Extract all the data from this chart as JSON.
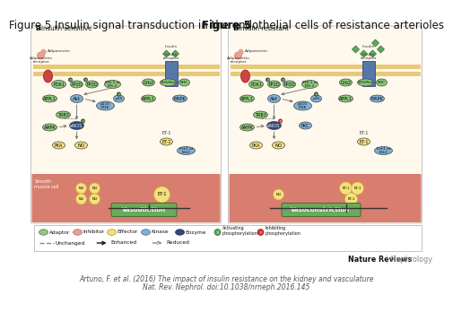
{
  "title_bold": "Figure 5",
  "title_regular": " Insulin signal transduction in the endothelial cells of resistance arterioles",
  "title_fontsize": 8.5,
  "bg_color": "#ffffff",
  "citation_line1": "Artuno, F. et al. (2016) The impact of insulin resistance on the kidney and vasculature",
  "citation_line2": "Nat. Rev. Nephrol. doi:10.1038/nrneph.2016.145",
  "citation_fontsize": 5.5,
  "journal_bold": "Nature Reviews",
  "journal_regular": " | Nephrology",
  "journal_fontsize": 5.8,
  "adaptor_color": "#8dc87a",
  "inhibitor_color": "#e8a090",
  "effector_color": "#f5e07a",
  "kinase_color": "#7fafd4",
  "enzyme_color": "#2e4a7a",
  "panel_bg": "#fef9ec",
  "membrane_color": "#e8c97a",
  "smooth_muscle_color": "#cc5544",
  "green_box_color": "#6aaa5a",
  "receptor_color": "#5577aa",
  "adiponectin_receptor_color": "#cc4444",
  "diamond_color": "#5daa5d",
  "inhibiting_dot_color": "#cc3333",
  "activating_dot_color": "#336633",
  "arrow_color": "#444444"
}
